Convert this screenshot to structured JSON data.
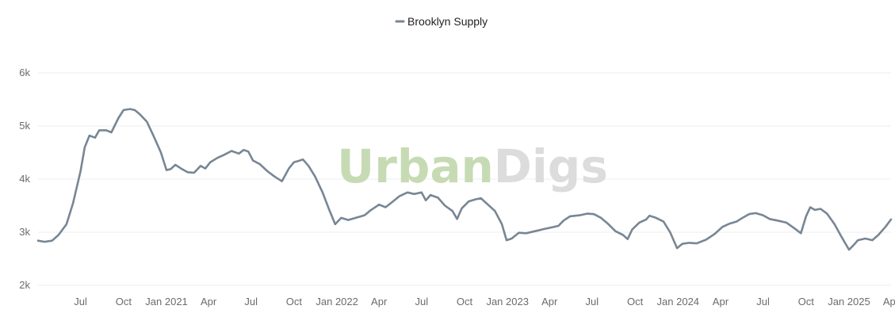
{
  "chart_data": {
    "type": "line",
    "title": "",
    "xlabel": "",
    "ylabel": "",
    "x_range": [
      "2020-04-01",
      "2025-04-01"
    ],
    "ylim": [
      2000,
      6000
    ],
    "y_ticks": [
      2000,
      3000,
      4000,
      5000,
      6000
    ],
    "y_tick_labels": [
      "2k",
      "3k",
      "4k",
      "5k",
      "6k"
    ],
    "x_ticks": [
      "2020-07-01",
      "2020-10-01",
      "2021-01-01",
      "2021-04-01",
      "2021-07-01",
      "2021-10-01",
      "2022-01-01",
      "2022-04-01",
      "2022-07-01",
      "2022-10-01",
      "2023-01-01",
      "2023-04-01",
      "2023-07-01",
      "2023-10-01",
      "2024-01-01",
      "2024-04-01",
      "2024-07-01",
      "2024-10-01",
      "2025-01-01",
      "2025-04-01"
    ],
    "x_tick_labels": [
      "Jul",
      "Oct",
      "Jan 2021",
      "Apr",
      "Jul",
      "Oct",
      "Jan 2022",
      "Apr",
      "Jul",
      "Oct",
      "Jan 2023",
      "Apr",
      "Jul",
      "Oct",
      "Jan 2024",
      "Apr",
      "Jul",
      "Oct",
      "Jan 2025",
      "Apr"
    ],
    "grid": true,
    "legend_position": "top-center",
    "watermark": [
      "Urban",
      "Digs"
    ],
    "colors": {
      "series": "#788694",
      "watermark_green": "#c6dbb3",
      "watermark_gray": "#dcdcdc",
      "grid": "#ececec"
    },
    "series": [
      {
        "name": "Brooklyn Supply",
        "points": [
          [
            "2020-04-01",
            2840
          ],
          [
            "2020-04-15",
            2820
          ],
          [
            "2020-05-01",
            2840
          ],
          [
            "2020-05-15",
            2950
          ],
          [
            "2020-06-01",
            3150
          ],
          [
            "2020-06-15",
            3550
          ],
          [
            "2020-07-01",
            4150
          ],
          [
            "2020-07-10",
            4600
          ],
          [
            "2020-07-20",
            4820
          ],
          [
            "2020-08-01",
            4780
          ],
          [
            "2020-08-10",
            4920
          ],
          [
            "2020-08-25",
            4920
          ],
          [
            "2020-09-05",
            4880
          ],
          [
            "2020-09-20",
            5150
          ],
          [
            "2020-10-01",
            5300
          ],
          [
            "2020-10-15",
            5320
          ],
          [
            "2020-10-25",
            5300
          ],
          [
            "2020-11-05",
            5220
          ],
          [
            "2020-11-20",
            5080
          ],
          [
            "2020-12-05",
            4800
          ],
          [
            "2020-12-20",
            4500
          ],
          [
            "2021-01-01",
            4170
          ],
          [
            "2021-01-10",
            4190
          ],
          [
            "2021-01-20",
            4270
          ],
          [
            "2021-02-01",
            4200
          ],
          [
            "2021-02-15",
            4130
          ],
          [
            "2021-03-01",
            4120
          ],
          [
            "2021-03-15",
            4250
          ],
          [
            "2021-03-25",
            4200
          ],
          [
            "2021-04-05",
            4320
          ],
          [
            "2021-04-20",
            4400
          ],
          [
            "2021-05-05",
            4460
          ],
          [
            "2021-05-20",
            4530
          ],
          [
            "2021-06-05",
            4480
          ],
          [
            "2021-06-15",
            4550
          ],
          [
            "2021-06-25",
            4520
          ],
          [
            "2021-07-05",
            4350
          ],
          [
            "2021-07-20",
            4280
          ],
          [
            "2021-08-05",
            4150
          ],
          [
            "2021-08-20",
            4050
          ],
          [
            "2021-09-05",
            3960
          ],
          [
            "2021-09-20",
            4200
          ],
          [
            "2021-10-01",
            4320
          ],
          [
            "2021-10-10",
            4340
          ],
          [
            "2021-10-20",
            4370
          ],
          [
            "2021-11-01",
            4250
          ],
          [
            "2021-11-15",
            4050
          ],
          [
            "2021-12-01",
            3750
          ],
          [
            "2021-12-15",
            3430
          ],
          [
            "2021-12-28",
            3150
          ],
          [
            "2022-01-10",
            3270
          ],
          [
            "2022-01-25",
            3230
          ],
          [
            "2022-02-10",
            3270
          ],
          [
            "2022-03-01",
            3320
          ],
          [
            "2022-03-15",
            3420
          ],
          [
            "2022-04-01",
            3520
          ],
          [
            "2022-04-15",
            3470
          ],
          [
            "2022-05-01",
            3580
          ],
          [
            "2022-05-15",
            3680
          ],
          [
            "2022-06-01",
            3750
          ],
          [
            "2022-06-15",
            3720
          ],
          [
            "2022-07-01",
            3750
          ],
          [
            "2022-07-10",
            3600
          ],
          [
            "2022-07-20",
            3700
          ],
          [
            "2022-08-05",
            3650
          ],
          [
            "2022-08-20",
            3500
          ],
          [
            "2022-09-05",
            3400
          ],
          [
            "2022-09-15",
            3250
          ],
          [
            "2022-09-25",
            3450
          ],
          [
            "2022-10-10",
            3580
          ],
          [
            "2022-10-25",
            3620
          ],
          [
            "2022-11-05",
            3640
          ],
          [
            "2022-11-20",
            3520
          ],
          [
            "2022-12-05",
            3400
          ],
          [
            "2022-12-20",
            3150
          ],
          [
            "2022-12-30",
            2850
          ],
          [
            "2023-01-10",
            2880
          ],
          [
            "2023-01-25",
            2990
          ],
          [
            "2023-02-10",
            2980
          ],
          [
            "2023-03-01",
            3020
          ],
          [
            "2023-03-20",
            3060
          ],
          [
            "2023-04-05",
            3090
          ],
          [
            "2023-04-20",
            3120
          ],
          [
            "2023-05-01",
            3220
          ],
          [
            "2023-05-15",
            3300
          ],
          [
            "2023-06-05",
            3320
          ],
          [
            "2023-06-20",
            3350
          ],
          [
            "2023-07-05",
            3340
          ],
          [
            "2023-07-20",
            3270
          ],
          [
            "2023-08-05",
            3150
          ],
          [
            "2023-08-20",
            3020
          ],
          [
            "2023-09-05",
            2950
          ],
          [
            "2023-09-15",
            2870
          ],
          [
            "2023-09-25",
            3050
          ],
          [
            "2023-10-10",
            3180
          ],
          [
            "2023-10-25",
            3240
          ],
          [
            "2023-11-01",
            3310
          ],
          [
            "2023-11-15",
            3270
          ],
          [
            "2023-12-01",
            3200
          ],
          [
            "2023-12-15",
            3000
          ],
          [
            "2023-12-30",
            2700
          ],
          [
            "2024-01-10",
            2780
          ],
          [
            "2024-01-25",
            2800
          ],
          [
            "2024-02-10",
            2790
          ],
          [
            "2024-03-01",
            2860
          ],
          [
            "2024-03-20",
            2970
          ],
          [
            "2024-04-05",
            3100
          ],
          [
            "2024-04-20",
            3160
          ],
          [
            "2024-05-05",
            3200
          ],
          [
            "2024-05-20",
            3280
          ],
          [
            "2024-06-01",
            3340
          ],
          [
            "2024-06-15",
            3360
          ],
          [
            "2024-07-01",
            3320
          ],
          [
            "2024-07-15",
            3250
          ],
          [
            "2024-08-01",
            3220
          ],
          [
            "2024-08-20",
            3180
          ],
          [
            "2024-09-05",
            3080
          ],
          [
            "2024-09-20",
            2980
          ],
          [
            "2024-10-01",
            3300
          ],
          [
            "2024-10-10",
            3470
          ],
          [
            "2024-10-20",
            3420
          ],
          [
            "2024-11-01",
            3440
          ],
          [
            "2024-11-15",
            3350
          ],
          [
            "2024-12-01",
            3150
          ],
          [
            "2024-12-15",
            2930
          ],
          [
            "2025-01-01",
            2670
          ],
          [
            "2025-01-10",
            2750
          ],
          [
            "2025-01-20",
            2850
          ],
          [
            "2025-02-05",
            2880
          ],
          [
            "2025-02-20",
            2850
          ],
          [
            "2025-03-05",
            2950
          ],
          [
            "2025-03-20",
            3100
          ],
          [
            "2025-04-01",
            3240
          ]
        ]
      }
    ]
  }
}
